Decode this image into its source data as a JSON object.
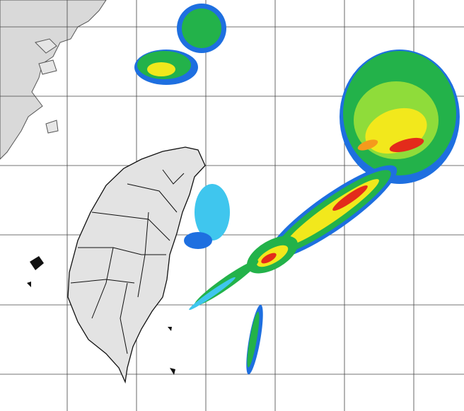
{
  "map": {
    "colors": {
      "background": "#ffffff",
      "land_mainland": "#d9d9d9",
      "land_taiwan": "#e3e3e3",
      "outline": "#111111",
      "grid": "#444444",
      "echo_blue": "#1e6fe0",
      "echo_cyan": "#3fc6ee",
      "echo_green": "#23b24a",
      "echo_lightgreen": "#8fdc3a",
      "echo_yellow": "#f2e81c",
      "echo_orange": "#f59a1c",
      "echo_red": "#e32b1b"
    },
    "layers": [
      "grid",
      "mainland-coast",
      "taiwan-counties",
      "radar-echo"
    ]
  }
}
